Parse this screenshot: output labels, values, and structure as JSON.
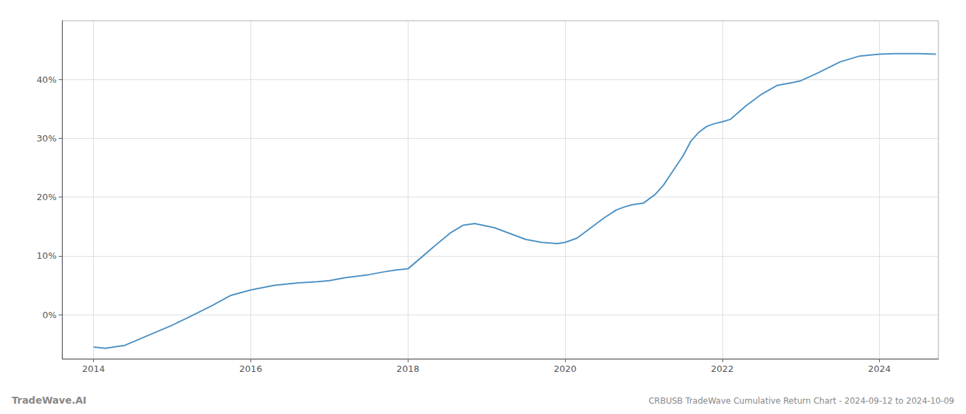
{
  "chart_data": {
    "type": "line",
    "title": "CRBUSB TradeWave Cumulative Return Chart - 2024-09-12 to 2024-10-09",
    "annotations": [
      "TradeWave.AI"
    ],
    "color": "#4a90c4",
    "grid": true,
    "x": [
      2014.0,
      2014.15,
      2014.4,
      2014.7,
      2015.0,
      2015.2,
      2015.5,
      2015.75,
      2016.0,
      2016.3,
      2016.6,
      2016.85,
      2017.0,
      2017.2,
      2017.5,
      2017.7,
      2017.85,
      2018.0,
      2018.15,
      2018.35,
      2018.55,
      2018.7,
      2018.85,
      2019.1,
      2019.3,
      2019.5,
      2019.7,
      2019.9,
      2020.0,
      2020.15,
      2020.3,
      2020.5,
      2020.65,
      2020.75,
      2020.85,
      2021.0,
      2021.15,
      2021.25,
      2021.35,
      2021.5,
      2021.6,
      2021.7,
      2021.8,
      2021.9,
      2022.0,
      2022.1,
      2022.3,
      2022.5,
      2022.7,
      2022.9,
      2023.0,
      2023.2,
      2023.5,
      2023.75,
      2024.0,
      2024.2,
      2024.5,
      2024.72
    ],
    "values": [
      -0.055,
      -0.057,
      -0.052,
      -0.035,
      -0.018,
      -0.005,
      0.015,
      0.033,
      0.042,
      0.05,
      0.054,
      0.056,
      0.058,
      0.063,
      0.068,
      0.073,
      0.076,
      0.078,
      0.095,
      0.118,
      0.14,
      0.152,
      0.155,
      0.148,
      0.138,
      0.128,
      0.123,
      0.121,
      0.123,
      0.13,
      0.145,
      0.165,
      0.178,
      0.183,
      0.187,
      0.19,
      0.205,
      0.22,
      0.24,
      0.27,
      0.295,
      0.31,
      0.32,
      0.325,
      0.328,
      0.332,
      0.355,
      0.375,
      0.39,
      0.395,
      0.398,
      0.41,
      0.43,
      0.44,
      0.443,
      0.444,
      0.444,
      0.443
    ],
    "xlim": [
      2013.6,
      2024.75
    ],
    "xticks": [
      2014,
      2016,
      2018,
      2020,
      2022,
      2024
    ],
    "ylim": [
      -0.075,
      0.5
    ],
    "yticks": [
      {
        "value": 0.0,
        "label": "0%"
      },
      {
        "value": 0.1,
        "label": "10%"
      },
      {
        "value": 0.2,
        "label": "20%"
      },
      {
        "value": 0.3,
        "label": "30%"
      },
      {
        "value": 0.4,
        "label": "40%"
      }
    ]
  }
}
